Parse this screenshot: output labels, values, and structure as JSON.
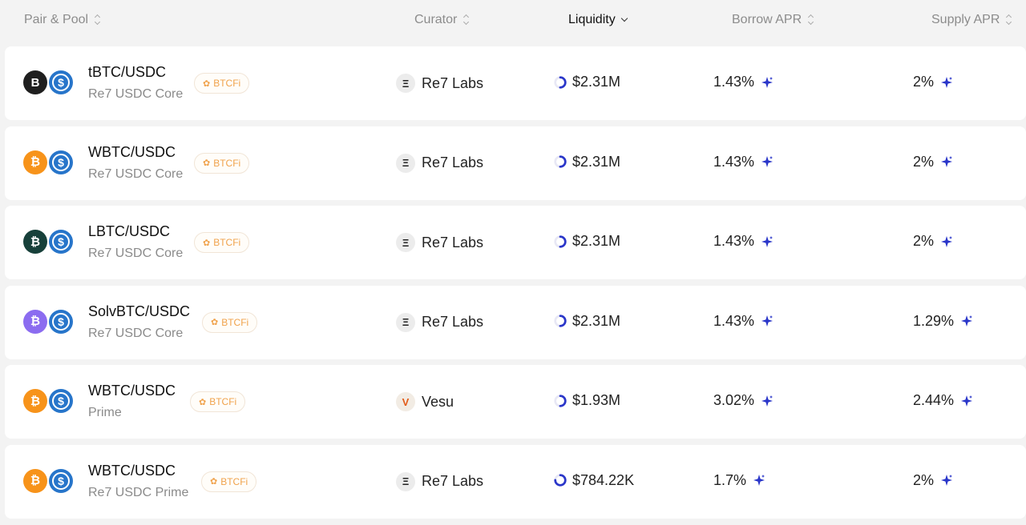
{
  "colors": {
    "accent": "#2a36c9",
    "badge": "#f0a24b",
    "usdc": "#2775ca"
  },
  "header": {
    "pair_pool": "Pair & Pool",
    "curator": "Curator",
    "liquidity": "Liquidity",
    "borrow_apr": "Borrow APR",
    "supply_apr": "Supply APR"
  },
  "rows": [
    {
      "pair": "tBTC/USDC",
      "pool": "Re7 USDC Core",
      "badge": "BTCFi",
      "curator": "Re7 Labs",
      "curator_icon": "re7-logo-icon",
      "liquidity": "$2.31M",
      "liquidity_fill": 0.5,
      "borrow_apr": "1.43%",
      "supply_apr": "2%",
      "token_icon": "tbtc-icon",
      "token_color": "#1f1f1f",
      "token_glyph": "B"
    },
    {
      "pair": "WBTC/USDC",
      "pool": "Re7 USDC Core",
      "badge": "BTCFi",
      "curator": "Re7 Labs",
      "curator_icon": "re7-logo-icon",
      "liquidity": "$2.31M",
      "liquidity_fill": 0.5,
      "borrow_apr": "1.43%",
      "supply_apr": "2%",
      "token_icon": "wbtc-icon",
      "token_color": "#f7931a",
      "token_glyph": "₿"
    },
    {
      "pair": "LBTC/USDC",
      "pool": "Re7 USDC Core",
      "badge": "BTCFi",
      "curator": "Re7 Labs",
      "curator_icon": "re7-logo-icon",
      "liquidity": "$2.31M",
      "liquidity_fill": 0.5,
      "borrow_apr": "1.43%",
      "supply_apr": "2%",
      "token_icon": "lbtc-icon",
      "token_color": "#17403a",
      "token_glyph": "₿"
    },
    {
      "pair": "SolvBTC/USDC",
      "pool": "Re7 USDC Core",
      "badge": "BTCFi",
      "curator": "Re7 Labs",
      "curator_icon": "re7-logo-icon",
      "liquidity": "$2.31M",
      "liquidity_fill": 0.5,
      "borrow_apr": "1.43%",
      "supply_apr": "1.29%",
      "token_icon": "solvbtc-icon",
      "token_color": "#8b6cf0",
      "token_glyph": "₿"
    },
    {
      "pair": "WBTC/USDC",
      "pool": "Prime",
      "badge": "BTCFi",
      "curator": "Vesu",
      "curator_icon": "vesu-logo-icon",
      "liquidity": "$1.93M",
      "liquidity_fill": 0.5,
      "borrow_apr": "3.02%",
      "supply_apr": "2.44%",
      "token_icon": "wbtc-icon",
      "token_color": "#f7931a",
      "token_glyph": "₿"
    },
    {
      "pair": "WBTC/USDC",
      "pool": "Re7 USDC Prime",
      "badge": "BTCFi",
      "curator": "Re7 Labs",
      "curator_icon": "re7-logo-icon",
      "liquidity": "$784.22K",
      "liquidity_fill": 0.75,
      "borrow_apr": "1.7%",
      "supply_apr": "2%",
      "token_icon": "wbtc-icon",
      "token_color": "#f7931a",
      "token_glyph": "₿"
    }
  ]
}
